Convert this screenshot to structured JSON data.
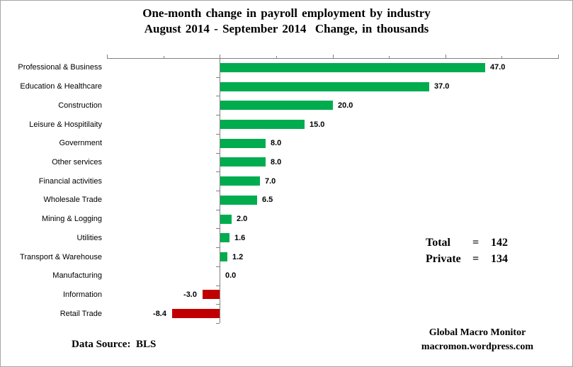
{
  "title": {
    "line1": "One-month change in payroll employment by industry",
    "line2": "August 2014 - September 2014  Change, in thousands"
  },
  "chart_data": {
    "type": "bar",
    "orientation": "horizontal",
    "title": "One-month change in payroll employment by industry",
    "subtitle": "August 2014 - September 2014 Change, in thousands",
    "categories": [
      "Professional & Business",
      "Education & Healthcare",
      "Construction",
      "Leisure & Hospitilaity",
      "Government",
      "Other services",
      "Financial activities",
      "Wholesale Trade",
      "Mining & Logging",
      "Utilities",
      "Transport & Warehouse",
      "Manufacturing",
      "Information",
      "Retail Trade"
    ],
    "values": [
      47.0,
      37.0,
      20.0,
      15.0,
      8.0,
      8.0,
      7.0,
      6.5,
      2.0,
      1.6,
      1.2,
      0.0,
      -3.0,
      -8.4
    ],
    "value_labels": [
      "47.0",
      "37.0",
      "20.0",
      "15.0",
      "8.0",
      "8.0",
      "7.0",
      "6.5",
      "2.0",
      "1.6",
      "1.2",
      "0.0",
      "-3.0",
      "-8.4"
    ],
    "xlim": [
      -20,
      60
    ],
    "x_tick_step": 10,
    "x_major_tick_step": 20,
    "grid": false,
    "legend": "none",
    "colors": {
      "positive": "#00AC4E",
      "negative": "#C00000",
      "axis": "#808080"
    }
  },
  "totals": {
    "rows": [
      {
        "label": "Total",
        "eq": "=",
        "value": "142"
      },
      {
        "label": "Private",
        "eq": "=",
        "value": "134"
      }
    ]
  },
  "footer": {
    "data_source": "Data Source:  BLS",
    "credit_line1": "Global Macro Monitor",
    "credit_line2": "macromon.wordpress.com"
  }
}
